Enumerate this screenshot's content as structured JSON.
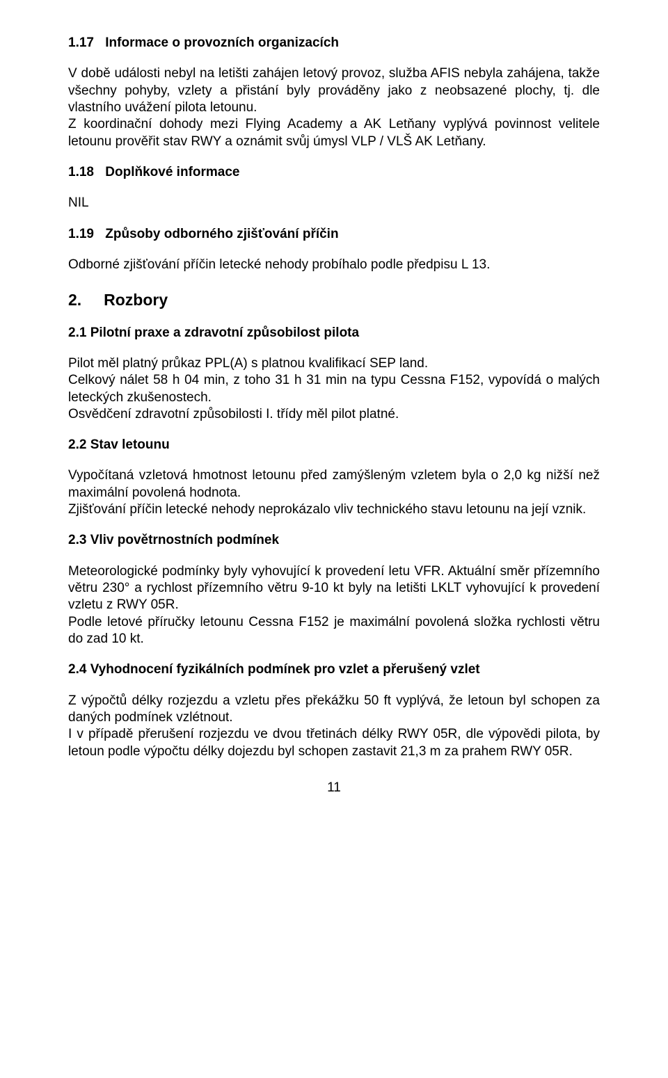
{
  "sec117": {
    "num": "1.17",
    "title": "Informace o provozních organizacích",
    "p1": "V době události nebyl na letišti zahájen letový provoz, služba AFIS nebyla zahájena, takže všechny pohyby, vzlety a přistání byly prováděny jako z neobsazené plochy, tj. dle vlastního uvážení pilota letounu.",
    "p2": "Z koordinační dohody mezi Flying Academy a AK Letňany vyplývá povinnost velitele letounu prověřit stav RWY a oznámit svůj úmysl VLP / VLŠ AK Letňany."
  },
  "sec118": {
    "num": "1.18",
    "title": "Doplňkové informace",
    "nil": "NIL"
  },
  "sec119": {
    "num": "1.19",
    "title": "Způsoby odborného zjišťování příčin",
    "p1": "Odborné zjišťování příčin letecké nehody probíhalo podle předpisu L 13."
  },
  "sec2": {
    "num": "2.",
    "title": "Rozbory"
  },
  "sec21": {
    "title": "2.1 Pilotní praxe a zdravotní způsobilost pilota",
    "p1": "Pilot měl platný průkaz PPL(A) s platnou kvalifikací SEP land.",
    "p2": "Celkový nálet 58 h 04 min, z toho 31 h 31 min na typu Cessna F152, vypovídá o malých leteckých zkušenostech.",
    "p3": "Osvědčení zdravotní způsobilosti I. třídy měl pilot platné."
  },
  "sec22": {
    "title": "2.2 Stav letounu",
    "p1": "Vypočítaná vzletová hmotnost letounu před zamýšleným vzletem byla o 2,0 kg nižší než maximální povolená hodnota.",
    "p2": "Zjišťování příčin letecké nehody neprokázalo vliv technického stavu letounu na její vznik."
  },
  "sec23": {
    "title": "2.3 Vliv povětrnostních podmínek",
    "p1": "Meteorologické podmínky byly vyhovující k provedení letu VFR. Aktuální směr přízemního větru 230° a rychlost přízemního větru 9-10 kt byly na letišti LKLT vyhovující k provedení vzletu z RWY 05R.",
    "p2": "Podle letové příručky letounu Cessna F152 je maximální povolená složka rychlosti větru do zad 10 kt."
  },
  "sec24": {
    "title": "2.4 Vyhodnocení fyzikálních podmínek pro vzlet a přerušený vzlet",
    "p1": "Z výpočtů délky rozjezdu a vzletu přes překážku 50 ft vyplývá, že letoun byl schopen za daných podmínek vzlétnout.",
    "p2": "I v případě přerušení rozjezdu ve dvou třetinách délky RWY 05R, dle výpovědi pilota, by letoun podle výpočtu délky dojezdu byl schopen zastavit 21,3 m za prahem RWY 05R."
  },
  "pageNumber": "11"
}
